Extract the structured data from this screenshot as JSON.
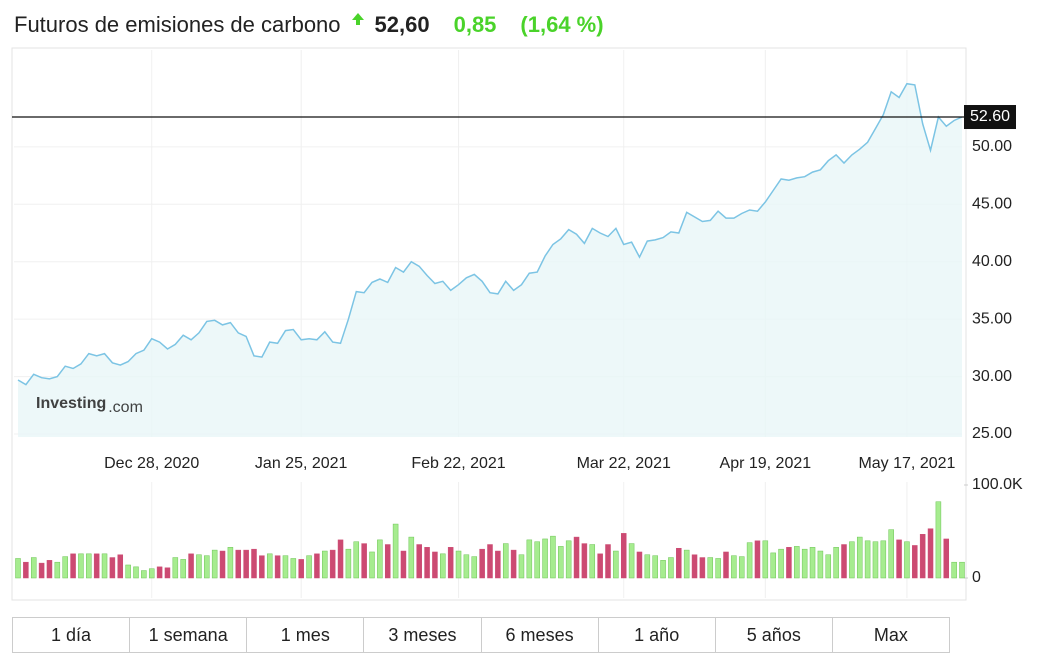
{
  "header": {
    "title": "Futuros de emisiones de carbono",
    "price": "52,60",
    "change": "0,85",
    "change_pct": "(1,64 %)"
  },
  "ranges": [
    "1 día",
    "1 semana",
    "1 mes",
    "3 meses",
    "6 meses",
    "1 año",
    "5 años",
    "Max"
  ],
  "chart_data": [
    {
      "type": "line",
      "fill": true,
      "color": "#7cc4e4",
      "fill_color": "#e9f6f8",
      "grid": true,
      "watermark": "Investing",
      "watermark_suffix": ".com",
      "categories": [
        null,
        null,
        null,
        null,
        null,
        null,
        null,
        null,
        null,
        null,
        null,
        null,
        null,
        null,
        null,
        null,
        null,
        "Dec 28, 2020",
        null,
        null,
        null,
        null,
        null,
        null,
        null,
        null,
        null,
        null,
        null,
        null,
        null,
        null,
        null,
        null,
        null,
        null,
        "Jan 25, 2021",
        null,
        null,
        null,
        null,
        null,
        null,
        null,
        null,
        null,
        null,
        null,
        null,
        null,
        null,
        null,
        null,
        null,
        null,
        null,
        "Feb 22, 2021",
        null,
        null,
        null,
        null,
        null,
        null,
        null,
        null,
        null,
        null,
        null,
        null,
        null,
        null,
        null,
        null,
        null,
        null,
        null,
        null,
        "Mar 22, 2021",
        null,
        null,
        null,
        null,
        null,
        null,
        null,
        null,
        null,
        null,
        null,
        null,
        null,
        null,
        null,
        null,
        null,
        "Apr 19, 2021",
        null,
        null,
        null,
        null,
        null,
        null,
        null,
        null,
        null,
        null,
        null,
        null,
        null,
        null,
        null,
        null,
        null,
        "May 17, 2021",
        null,
        null,
        null,
        null,
        null,
        null,
        null
      ],
      "values": [
        29.7,
        29.3,
        30.2,
        29.9,
        29.8,
        30.0,
        30.9,
        30.7,
        31.1,
        32.0,
        31.8,
        32.0,
        31.2,
        31.0,
        31.3,
        32.0,
        32.3,
        33.3,
        33.0,
        32.4,
        32.8,
        33.6,
        33.2,
        33.8,
        34.8,
        34.9,
        34.5,
        34.7,
        33.8,
        33.5,
        31.8,
        31.7,
        33.0,
        32.9,
        34.0,
        34.1,
        33.2,
        33.3,
        33.2,
        33.9,
        33.0,
        32.9,
        35.0,
        37.4,
        37.3,
        38.2,
        38.5,
        38.2,
        39.5,
        39.1,
        40.0,
        39.6,
        38.8,
        38.1,
        38.3,
        37.5,
        38.0,
        38.6,
        38.9,
        38.3,
        37.3,
        37.2,
        38.3,
        37.5,
        38.0,
        39.0,
        39.1,
        40.5,
        41.5,
        42.0,
        42.8,
        42.4,
        41.6,
        42.9,
        42.5,
        42.2,
        42.9,
        41.5,
        41.7,
        40.4,
        41.8,
        41.9,
        42.1,
        42.6,
        42.5,
        44.3,
        43.9,
        43.5,
        43.6,
        44.4,
        43.8,
        43.8,
        44.2,
        44.5,
        44.4,
        45.2,
        46.2,
        47.2,
        47.1,
        47.3,
        47.4,
        47.8,
        48.0,
        48.8,
        49.3,
        48.6,
        49.3,
        49.8,
        50.4,
        51.6,
        52.8,
        54.8,
        54.3,
        55.5,
        55.4,
        52.0,
        49.7,
        52.6,
        51.8,
        52.3,
        52.6
      ],
      "ylim": [
        25,
        58
      ],
      "yticks": [
        {
          "value": 25,
          "label": "25.00"
        },
        {
          "value": 30,
          "label": "30.00"
        },
        {
          "value": 35,
          "label": "35.00"
        },
        {
          "value": 40,
          "label": "40.00"
        },
        {
          "value": 45,
          "label": "45.00"
        },
        {
          "value": 50,
          "label": "50.00"
        }
      ],
      "current": {
        "value": 52.6,
        "label": "52.60"
      }
    },
    {
      "type": "bar",
      "up_color": "#a6ec8f",
      "down_color": "#cc4a72",
      "grid": true,
      "values": [
        21000,
        17000,
        22000,
        16000,
        19000,
        17000,
        23000,
        26000,
        26000,
        26000,
        26000,
        26000,
        22000,
        25000,
        14000,
        12000,
        8000,
        10000,
        12000,
        11000,
        22000,
        20000,
        26000,
        25000,
        24000,
        30000,
        29000,
        33000,
        30000,
        30000,
        31000,
        24000,
        26000,
        24000,
        24000,
        21000,
        20000,
        24000,
        26000,
        29000,
        30000,
        41000,
        31000,
        39000,
        37000,
        28000,
        41000,
        36000,
        58000,
        29000,
        44000,
        36000,
        33000,
        28000,
        26000,
        33000,
        29000,
        25000,
        23000,
        31000,
        36000,
        29000,
        37000,
        30000,
        25000,
        41000,
        39000,
        42000,
        45000,
        34000,
        40000,
        44000,
        37000,
        36000,
        26000,
        36000,
        29000,
        48000,
        37000,
        28000,
        25000,
        24000,
        19000,
        22000,
        32000,
        30000,
        25000,
        22000,
        22000,
        21000,
        28000,
        24000,
        23000,
        38000,
        40000,
        40000,
        27000,
        31000,
        33000,
        34000,
        31000,
        33000,
        29000,
        25000,
        33000,
        36000,
        39000,
        44000,
        40000,
        39000,
        40000,
        52000,
        41000,
        39000,
        35000,
        47000,
        53000,
        82000,
        42000,
        17000,
        17000
      ],
      "ylim": [
        0,
        100000
      ],
      "yticks": [
        {
          "value": 100000,
          "label": "100.0K"
        },
        0
      ]
    }
  ]
}
